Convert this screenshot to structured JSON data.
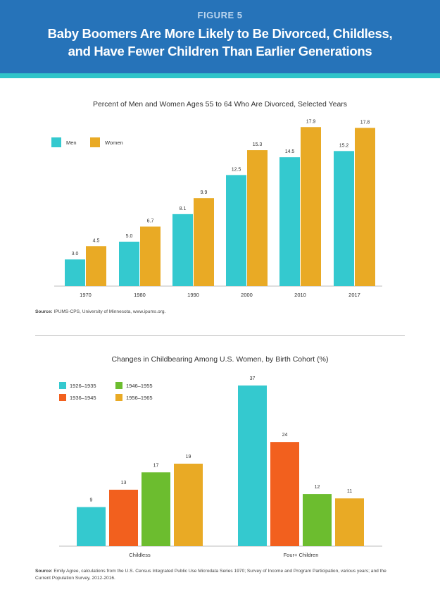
{
  "header": {
    "figure_label": "FIGURE 5",
    "title_line1": "Baby Boomers Are More Likely to Be Divorced, Childless,",
    "title_line2": "and Have Fewer Children Than Earlier Generations"
  },
  "colors": {
    "header_bg": "#2673b9",
    "stripe": "#2fc4c9",
    "teal": "#34c9cf",
    "gold": "#e9aa25",
    "orange": "#f2601e",
    "green": "#6cbd2f"
  },
  "chart_data": [
    {
      "type": "bar",
      "title": "Percent of Men and Women Ages 55 to 64 Who Are Divorced, Selected Years",
      "categories": [
        "1970",
        "1980",
        "1990",
        "2000",
        "2010",
        "2017"
      ],
      "series": [
        {
          "name": "Men",
          "color": "#34c9cf",
          "values": [
            3.0,
            5.0,
            8.1,
            12.5,
            14.5,
            15.2
          ]
        },
        {
          "name": "Women",
          "color": "#e9aa25",
          "values": [
            4.5,
            6.7,
            9.9,
            15.3,
            17.9,
            17.8
          ]
        }
      ],
      "value_labels": [
        [
          "3.0",
          "5.0",
          "8.1",
          "12.5",
          "14.5",
          "15.2"
        ],
        [
          "4.5",
          "6.7",
          "9.9",
          "15.3",
          "17.9",
          "17.8"
        ]
      ],
      "xlabel": "",
      "ylabel": "",
      "ylim": [
        0,
        18
      ],
      "grid": false,
      "legend_position": "top-left"
    },
    {
      "type": "bar",
      "title": "Changes in Childbearing Among U.S. Women, by Birth Cohort (%)",
      "categories": [
        "Childless",
        "Four+ Children"
      ],
      "series": [
        {
          "name": "1926–1935",
          "color": "#34c9cf",
          "values": [
            9,
            37
          ]
        },
        {
          "name": "1936–1945",
          "color": "#f2601e",
          "values": [
            13,
            24
          ]
        },
        {
          "name": "1946–1955",
          "color": "#6cbd2f",
          "values": [
            17,
            12
          ]
        },
        {
          "name": "1956–1965",
          "color": "#e9aa25",
          "values": [
            19,
            11
          ]
        }
      ],
      "value_labels": [
        [
          "9",
          "37"
        ],
        [
          "13",
          "24"
        ],
        [
          "17",
          "12"
        ],
        [
          "19",
          "11"
        ]
      ],
      "xlabel": "",
      "ylabel": "",
      "ylim": [
        0,
        37
      ],
      "grid": false,
      "legend_position": "top-left"
    }
  ],
  "sources": {
    "source1_label": "Source:",
    "source1_text": " IPUMS-CPS, University of Minnesota, www.ipums.org.",
    "source2_label": "Source:",
    "source2_text": " Emily Agree, calculations from the U.S. Census Integrated Public Use Microdata Series 1970; Survey of Income and Program Participation, various years; and the Current Population Survey, 2012-2016."
  }
}
